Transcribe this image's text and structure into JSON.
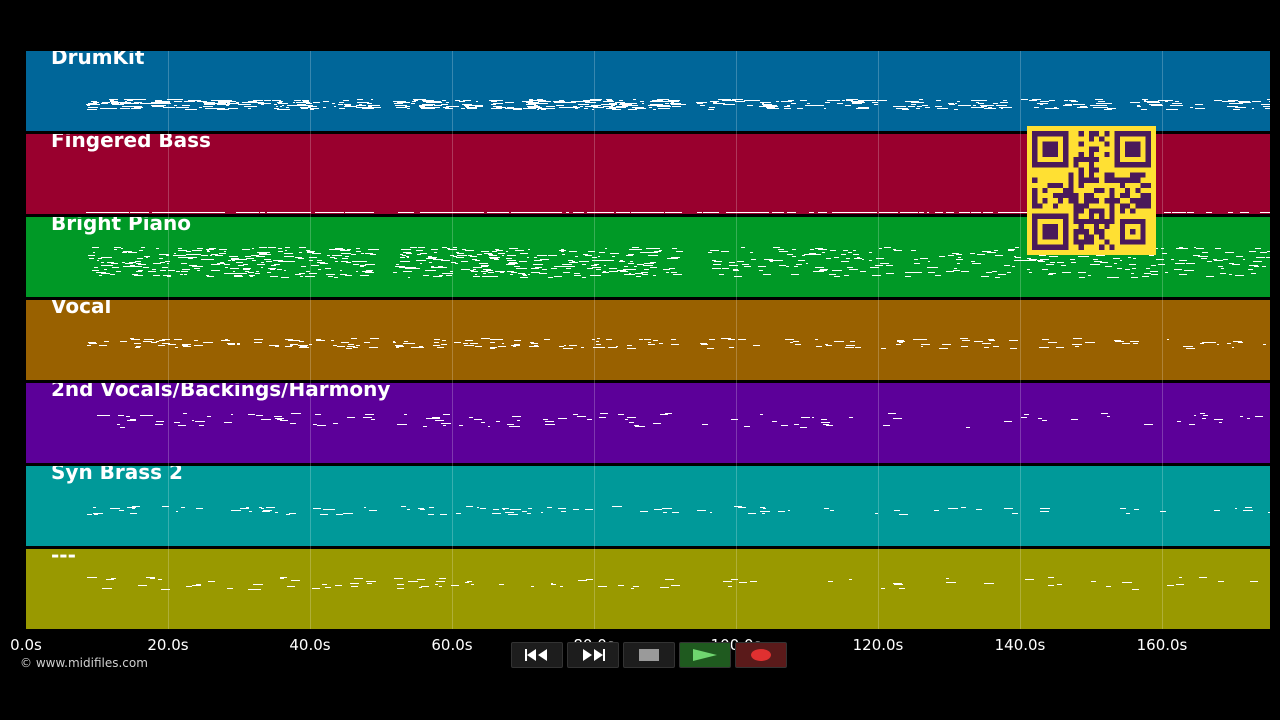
{
  "tracks": [
    {
      "name": "DrumKit",
      "color": "#006699"
    },
    {
      "name": "Fingered Bass",
      "color": "#99002e"
    },
    {
      "name": "Bright Piano",
      "color": "#009926"
    },
    {
      "name": "Vocal",
      "color": "#996100"
    },
    {
      "name": "2nd Vocals/Backings/Harmony",
      "color": "#5c0099"
    },
    {
      "name": "Syn Brass 2",
      "color": "#009999"
    },
    {
      "name": "---",
      "color": "#999900"
    }
  ],
  "timeline": {
    "ticks": [
      "0.0s",
      "20.0s",
      "40.0s",
      "60.0s",
      "80.0s",
      "100.0s",
      "120.0s",
      "140.0s",
      "160.0s"
    ]
  },
  "transport": {
    "buttons": [
      "rewind",
      "fast-forward",
      "stop",
      "play",
      "record"
    ]
  },
  "copyright": "© www.midifiles.com",
  "qr_code": {
    "color": "#ffe033",
    "module_color": "#4a1a5a"
  }
}
